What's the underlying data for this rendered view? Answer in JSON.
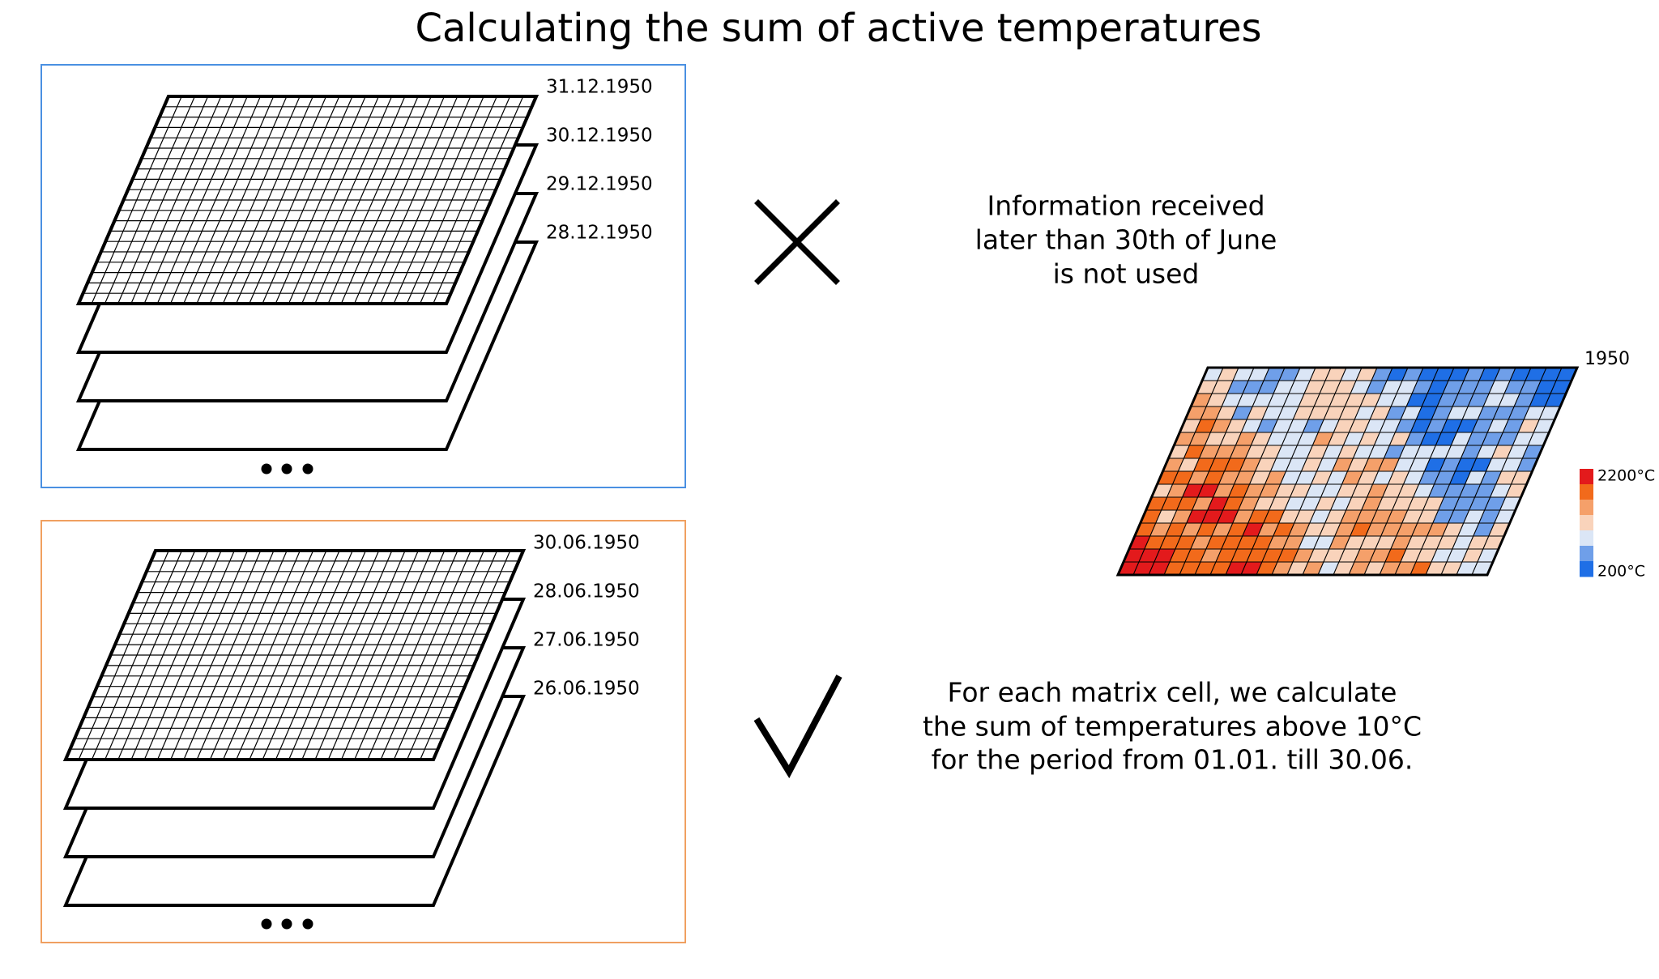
{
  "header": {
    "title": "Calculating the sum of active temperatures"
  },
  "panels": [
    {
      "dates": [
        "31.12.1950",
        "30.12.1950",
        "29.12.1950",
        "28.12.1950"
      ]
    },
    {
      "dates": [
        "30.06.1950",
        "28.06.1950",
        "27.06.1950",
        "26.06.1950"
      ]
    }
  ],
  "notes": {
    "rejected": {
      "lines": [
        "Information received",
        "later than 30th of June",
        "is not used"
      ]
    },
    "accepted": {
      "lines": [
        "For each matrix cell, we calculate",
        "the sum of temperatures above 10°C",
        "for the period from 01.01. till 30.06."
      ]
    }
  },
  "heatmap": {
    "label": "1950",
    "legend": {
      "max_label": "2200°C",
      "min_label": "200°C"
    }
  }
}
